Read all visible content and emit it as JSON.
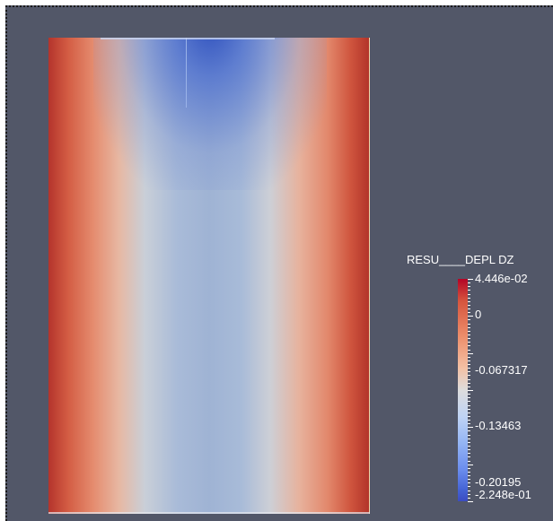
{
  "colorbar": {
    "title": "RESU____DEPL DZ",
    "max_label": "4.446e-02",
    "min_label": "-2.248e-01",
    "tick_labels": [
      "0",
      "-0.067317",
      "-0.13463",
      "-0.20195"
    ],
    "range": [
      -0.2248,
      0.04446
    ],
    "colormap": [
      "#3b4cc0",
      "#dddcdc",
      "#b40426"
    ]
  },
  "colors": {
    "background": "#525768",
    "label_text": "#ffffff"
  }
}
